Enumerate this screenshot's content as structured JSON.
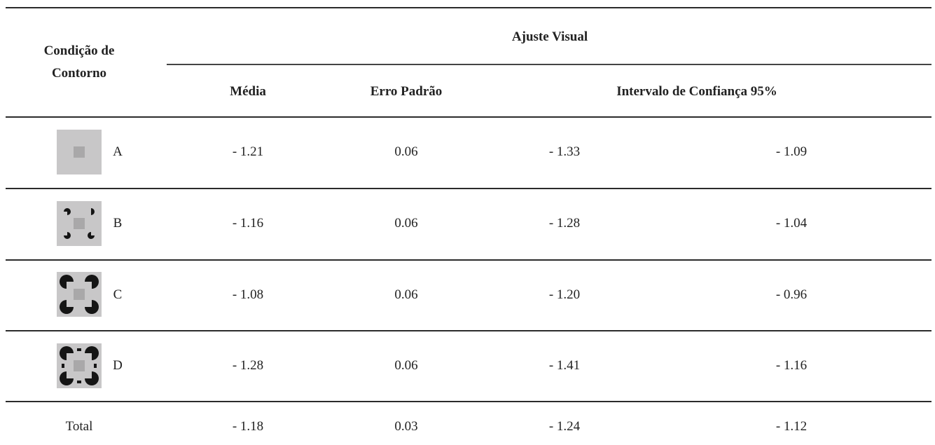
{
  "header": {
    "group_title": "Ajuste Visual",
    "row_header_line1": "Condição de",
    "row_header_line2": "Contorno",
    "col_mean": "Média",
    "col_se": "Erro Padrão",
    "col_ci": "Intervalo de Confiança 95%"
  },
  "rows": [
    {
      "label": "A",
      "mean": "- 1.21",
      "se": "0.06",
      "ci_low": "- 1.33",
      "ci_high": "- 1.09",
      "icon": "plain-square-stimulus-icon"
    },
    {
      "label": "B",
      "mean": "- 1.16",
      "se": "0.06",
      "ci_low": "- 1.28",
      "ci_high": "- 1.04",
      "icon": "small-inducers-stimulus-icon"
    },
    {
      "label": "C",
      "mean": "- 1.08",
      "se": "0.06",
      "ci_low": "- 1.20",
      "ci_high": "- 0.96",
      "icon": "large-inducers-stimulus-icon"
    },
    {
      "label": "D",
      "mean": "- 1.28",
      "se": "0.06",
      "ci_low": "- 1.41",
      "ci_high": "- 1.16",
      "icon": "inducers-with-lines-stimulus-icon"
    }
  ],
  "total": {
    "label": "Total",
    "mean": "- 1.18",
    "se": "0.03",
    "ci_low": "- 1.24",
    "ci_high": "- 1.12"
  },
  "colors": {
    "stimulus_background": "#c8c7c8",
    "stimulus_square": "#a9a8a9",
    "inducer": "#151515"
  }
}
